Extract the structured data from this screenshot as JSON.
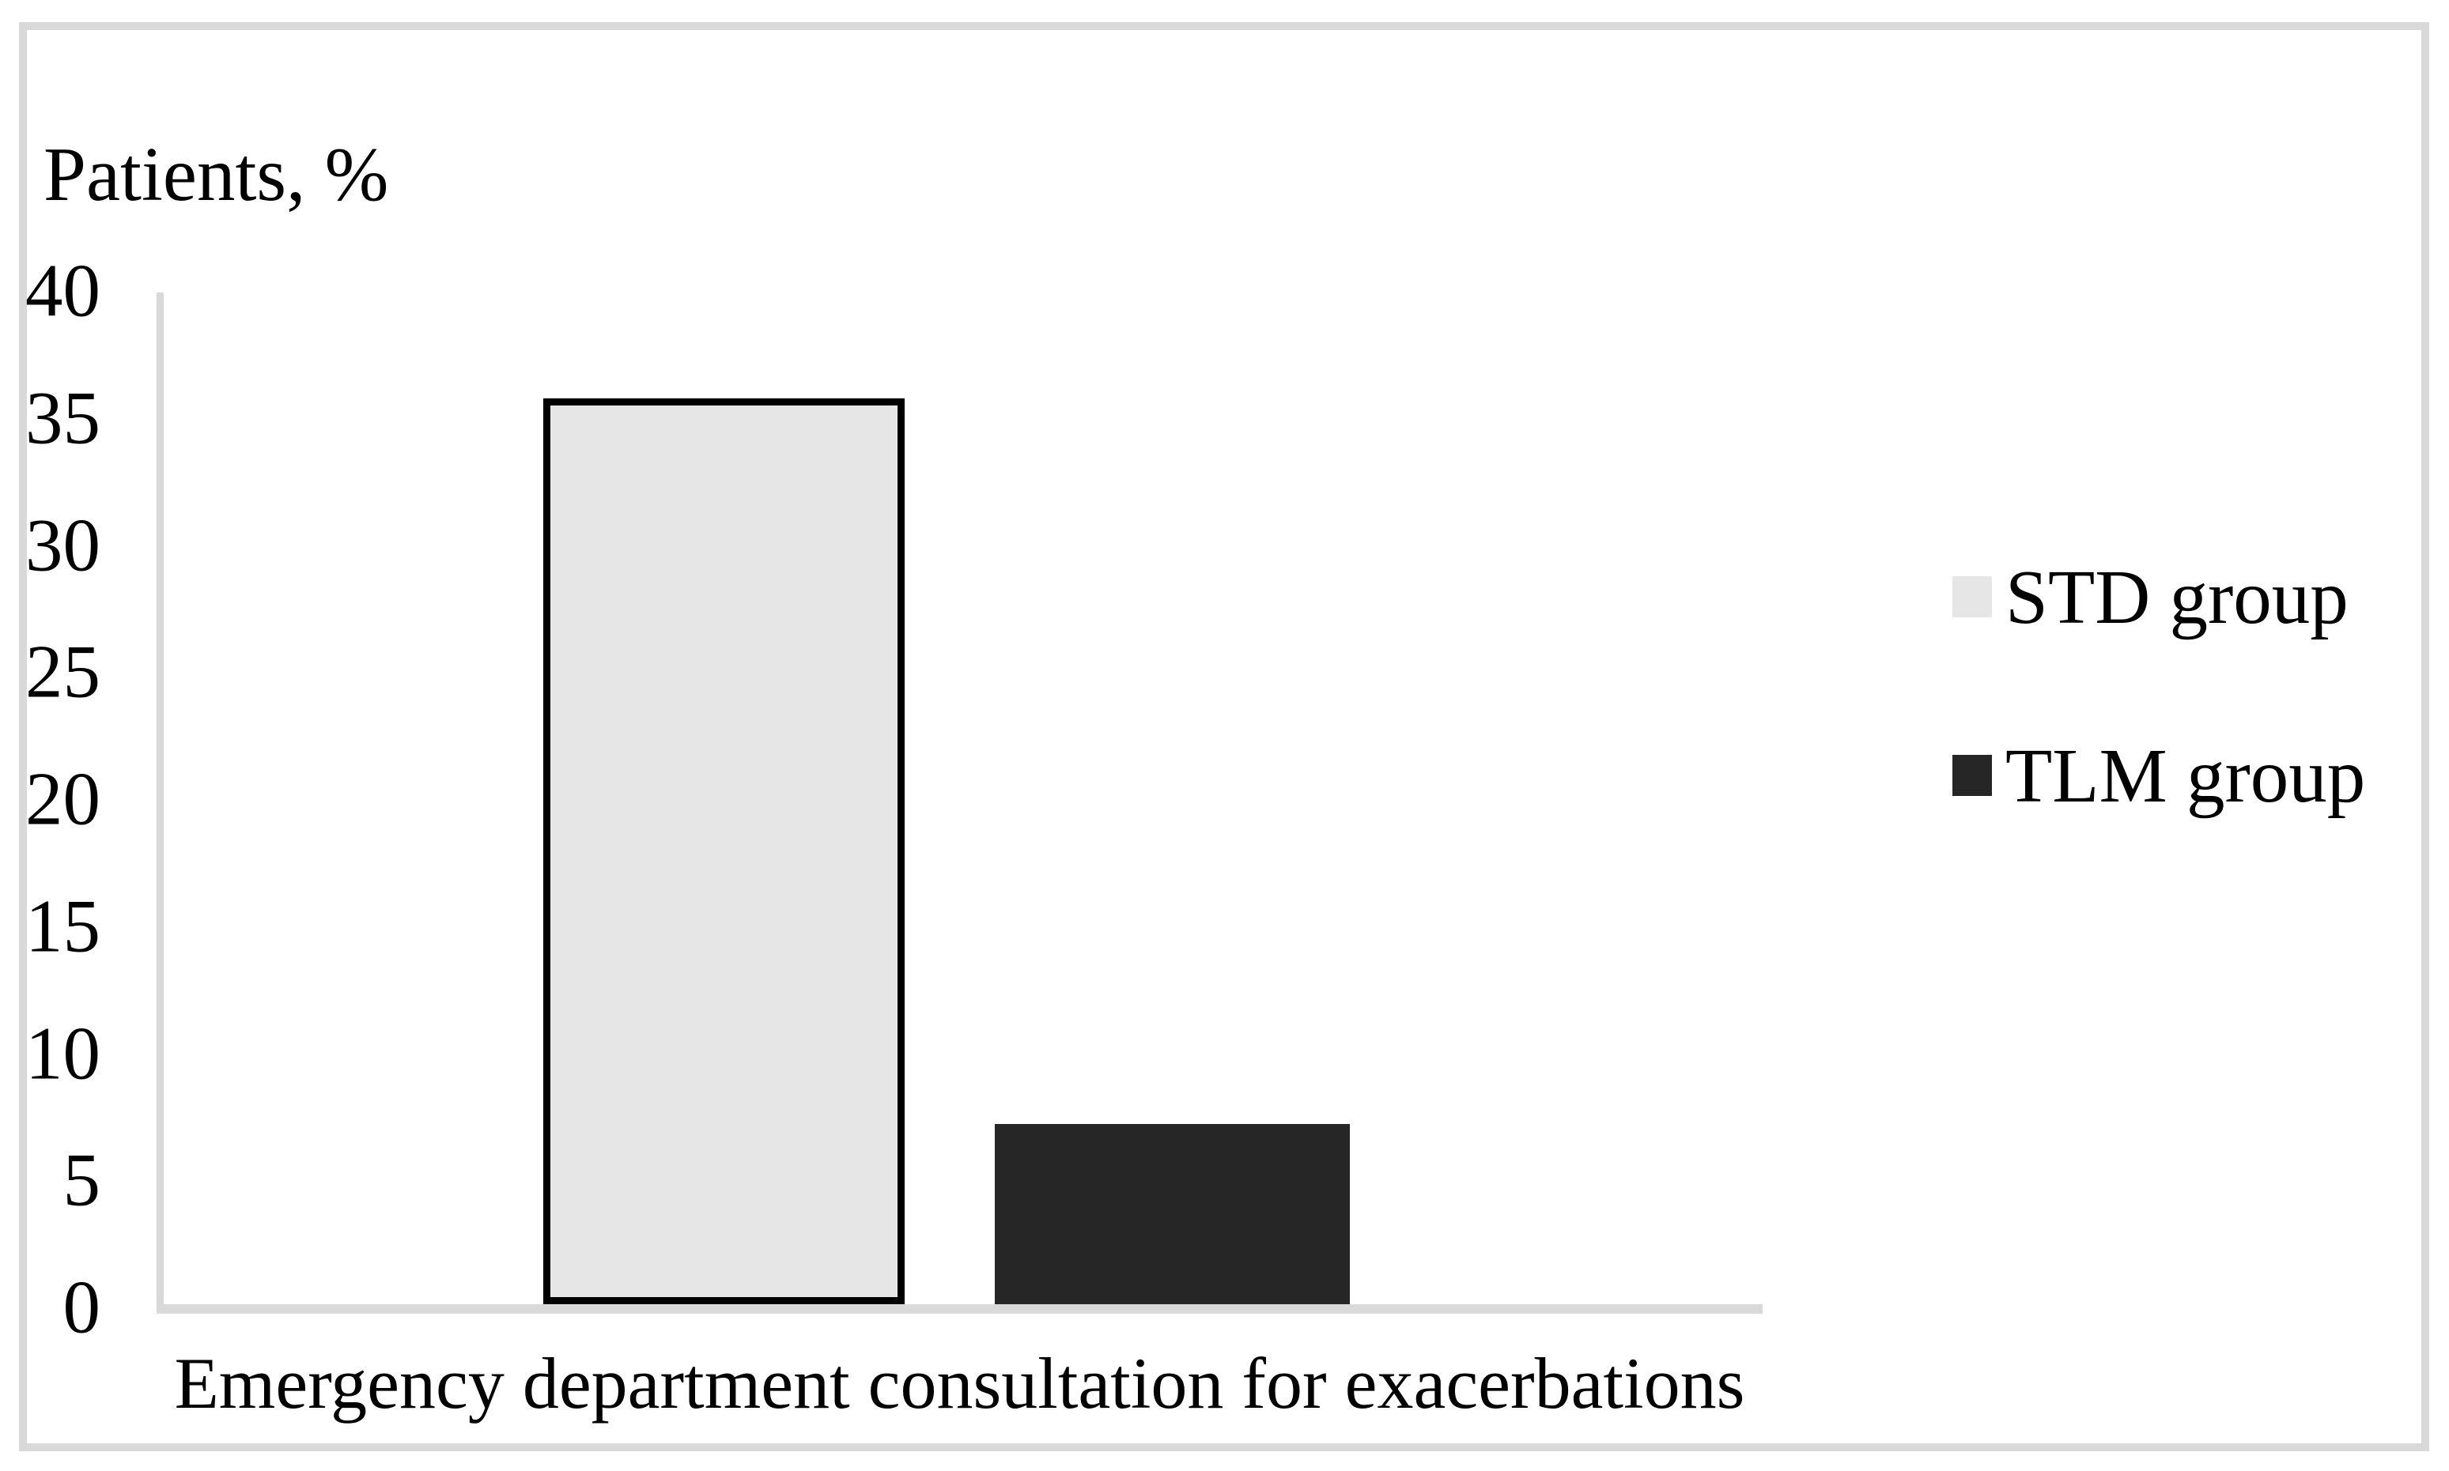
{
  "figure": {
    "title": "Patients, %",
    "x_axis_label": "Emergency department consultation for exacerbations"
  },
  "legend": {
    "items": [
      {
        "label": "STD group",
        "color": "#e6e6e6"
      },
      {
        "label": "TLM group",
        "color": "#262626"
      }
    ]
  },
  "colors": {
    "axis": "#d9d9d9",
    "frame": "#d9d9d9",
    "background": "#ffffff",
    "text": "#000000",
    "std_bar_fill": "#e6e6e6",
    "std_bar_border": "#000000",
    "tlm_bar_fill": "#262626"
  },
  "chart_data": {
    "type": "bar",
    "title": "Patients, %",
    "xlabel": "Emergency department consultation for exacerbations",
    "ylabel": "Patients, %",
    "categories": [
      "Emergency department consultation for exacerbations"
    ],
    "series": [
      {
        "name": "STD group",
        "values": [
          35.7
        ],
        "color": "#e6e6e6",
        "border_color": "#000000"
      },
      {
        "name": "TLM group",
        "values": [
          7.1
        ],
        "color": "#262626",
        "border_color": "#262626"
      }
    ],
    "ylim": [
      0,
      40
    ],
    "ytick_step": 5,
    "yticks": [
      40,
      35,
      30,
      25,
      20,
      15,
      10,
      5,
      0
    ],
    "grid": false,
    "legend_position": "right"
  }
}
